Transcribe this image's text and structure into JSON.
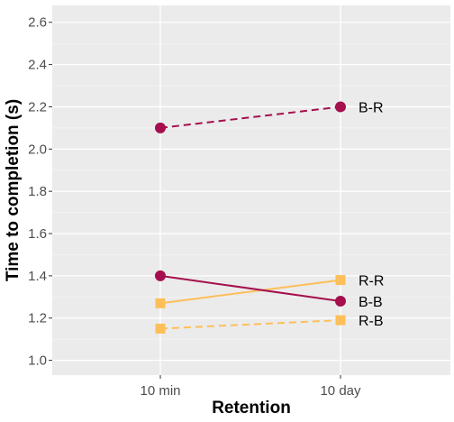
{
  "chart_data": {
    "type": "line",
    "title": "",
    "xlabel": "Retention",
    "ylabel": "Time to completion (s)",
    "categories": [
      "10 min",
      "10 day"
    ],
    "ylim": [
      0.93,
      2.68
    ],
    "yticks": [
      1.0,
      1.2,
      1.4,
      1.6,
      1.8,
      2.0,
      2.2,
      2.4,
      2.6
    ],
    "ytick_labels": [
      "1.0",
      "1.2",
      "1.4",
      "1.6",
      "1.8",
      "2.0",
      "2.2",
      "2.4",
      "2.6"
    ],
    "grid": true,
    "legend": "none",
    "series": [
      {
        "name": "B-R",
        "values": [
          2.1,
          2.2
        ],
        "color": "#a50f4e",
        "marker": "circle",
        "dash": "dashed"
      },
      {
        "name": "R-R",
        "values": [
          1.27,
          1.38
        ],
        "color": "#fdbf5a",
        "marker": "square",
        "dash": "solid"
      },
      {
        "name": "B-B",
        "values": [
          1.4,
          1.28
        ],
        "color": "#a50f4e",
        "marker": "circle",
        "dash": "solid"
      },
      {
        "name": "R-B",
        "values": [
          1.15,
          1.19
        ],
        "color": "#fdbf5a",
        "marker": "square",
        "dash": "dashed"
      }
    ]
  },
  "colors": {
    "panel_background": "#ebebeb",
    "grid_major": "#ffffff",
    "grid_minor": "#f5f5f5"
  }
}
